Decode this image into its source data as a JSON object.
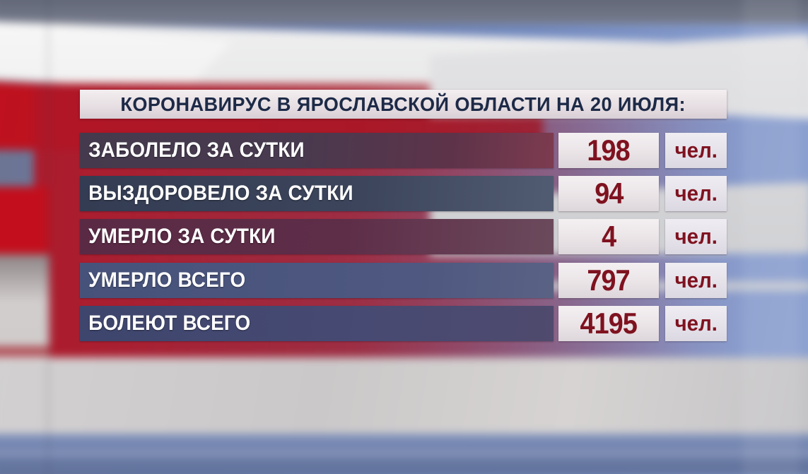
{
  "panel": {
    "title": "КОРОНАВИРУС В ЯРОСЛАВСКОЙ ОБЛАСТИ НА 20 ИЮЛЯ:",
    "rows": [
      {
        "label": "ЗАБОЛЕЛО ЗА СУТКИ",
        "value": "198",
        "unit": "чел."
      },
      {
        "label": "ВЫЗДОРОВЕЛО ЗА СУТКИ",
        "value": "94",
        "unit": "чел."
      },
      {
        "label": "УМЕРЛО ЗА СУТКИ",
        "value": "4",
        "unit": "чел."
      },
      {
        "label": "УМЕРЛО ВСЕГО",
        "value": "797",
        "unit": "чел."
      },
      {
        "label": "БОЛЕЮТ ВСЕГО",
        "value": "4195",
        "unit": "чел."
      }
    ]
  },
  "chart_data": {
    "type": "table",
    "title": "КОРОНАВИРУС В ЯРОСЛАВСКОЙ ОБЛАСТИ НА 20 ИЮЛЯ:",
    "rows": [
      [
        "ЗАБОЛЕЛО ЗА СУТКИ",
        198,
        "чел."
      ],
      [
        "ВЫЗДОРОВЕЛО ЗА СУТКИ",
        94,
        "чел."
      ],
      [
        "УМЕРЛО ЗА СУТКИ",
        4,
        "чел."
      ],
      [
        "УМЕРЛО ВСЕГО",
        797,
        "чел."
      ],
      [
        "БОЛЕЮТ ВСЕГО",
        4195,
        "чел."
      ]
    ]
  },
  "colors": {
    "title_text": "#1d2a47",
    "value_text": "#7f121f",
    "accent_red": "#b5121f",
    "background_blue": "#7088bd",
    "bar_light": "#f3eef0"
  }
}
